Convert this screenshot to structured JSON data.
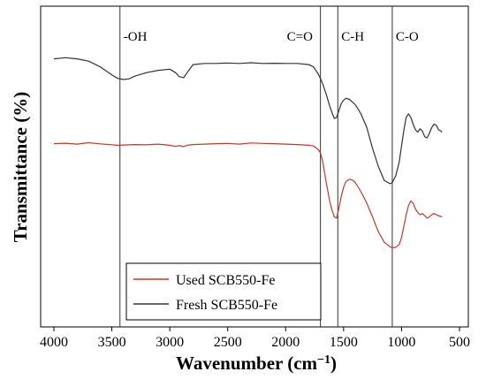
{
  "chart_data": {
    "type": "line",
    "title": "",
    "xlabel": "Wavenumber (cm",
    "xlabel_sup": "−1",
    "xlabel_close": ")",
    "ylabel": "Transmittance (%)",
    "xlim": [
      4000,
      500
    ],
    "x_reversed": true,
    "y_ticks_shown": false,
    "x_ticks": [
      "4000",
      "3500",
      "3000",
      "2500",
      "2000",
      "1500",
      "1000",
      "500"
    ],
    "x_tick_values": [
      4000,
      3500,
      3000,
      2500,
      2000,
      1500,
      1000,
      500
    ],
    "grid": false,
    "legend_position": "bottom-left",
    "annotations": [
      {
        "label": "-OH",
        "x": 3430
      },
      {
        "label": "C=O",
        "x": 1700
      },
      {
        "label": "C-H",
        "x": 1550
      },
      {
        "label": "C-O",
        "x": 1080
      }
    ],
    "series": [
      {
        "name": "Used SCB550-Fe",
        "color": "#c0392b",
        "x": [
          4000,
          3900,
          3800,
          3700,
          3600,
          3500,
          3450,
          3400,
          3300,
          3200,
          3100,
          3000,
          2950,
          2920,
          2880,
          2850,
          2800,
          2700,
          2600,
          2500,
          2400,
          2300,
          2200,
          2100,
          2000,
          1900,
          1800,
          1760,
          1740,
          1720,
          1700,
          1680,
          1650,
          1620,
          1600,
          1580,
          1560,
          1540,
          1520,
          1500,
          1480,
          1450,
          1420,
          1400,
          1380,
          1350,
          1300,
          1250,
          1200,
          1150,
          1100,
          1080,
          1050,
          1020,
          1000,
          980,
          960,
          940,
          920,
          900,
          880,
          860,
          840,
          820,
          800,
          780,
          760,
          740,
          720,
          700,
          680,
          660,
          650
        ],
        "y": [
          80.0,
          80.2,
          79.8,
          80.4,
          79.9,
          79.5,
          79.3,
          79.4,
          79.6,
          79.5,
          79.8,
          79.3,
          78.8,
          79.1,
          78.7,
          79.3,
          79.6,
          79.8,
          80.0,
          80.1,
          79.8,
          80.3,
          80.1,
          80.0,
          79.8,
          79.6,
          79.3,
          79.0,
          78.3,
          77.5,
          76.0,
          72.0,
          63.0,
          55.0,
          51.0,
          48.0,
          47.5,
          52.0,
          57.0,
          61.0,
          63.5,
          64.5,
          64.0,
          63.0,
          61.5,
          59.0,
          54.0,
          48.0,
          41.5,
          37.0,
          35.0,
          34.5,
          34.8,
          36.0,
          39.0,
          44.0,
          49.0,
          53.0,
          55.0,
          54.0,
          51.5,
          50.0,
          49.0,
          49.5,
          48.5,
          47.5,
          48.0,
          49.0,
          49.5,
          49.0,
          48.5,
          48.2,
          48.0
        ]
      },
      {
        "name": "Fresh SCB550-Fe",
        "color": "#333333",
        "x": [
          4000,
          3900,
          3800,
          3700,
          3600,
          3500,
          3450,
          3400,
          3350,
          3300,
          3200,
          3100,
          3000,
          2950,
          2920,
          2880,
          2850,
          2800,
          2700,
          2600,
          2500,
          2400,
          2300,
          2200,
          2100,
          2000,
          1900,
          1800,
          1760,
          1740,
          1720,
          1700,
          1680,
          1650,
          1620,
          1600,
          1580,
          1560,
          1540,
          1520,
          1500,
          1480,
          1450,
          1420,
          1400,
          1380,
          1350,
          1300,
          1250,
          1200,
          1150,
          1100,
          1080,
          1050,
          1020,
          1000,
          980,
          960,
          940,
          920,
          900,
          880,
          860,
          840,
          820,
          800,
          780,
          760,
          740,
          720,
          700,
          680,
          660,
          650
        ],
        "y": [
          117.0,
          117.5,
          117.0,
          116.0,
          113.5,
          110.0,
          108.5,
          108.0,
          108.3,
          109.5,
          111.0,
          112.0,
          112.5,
          111.0,
          109.3,
          108.8,
          111.0,
          114.5,
          115.0,
          115.0,
          115.2,
          115.0,
          115.3,
          115.0,
          115.1,
          115.0,
          115.0,
          114.5,
          113.5,
          112.0,
          110.5,
          108.5,
          106.0,
          101.5,
          96.5,
          93.5,
          91.0,
          91.5,
          94.5,
          97.5,
          99.0,
          99.8,
          99.3,
          98.0,
          97.0,
          95.5,
          93.0,
          87.0,
          78.0,
          70.0,
          64.0,
          62.5,
          63.0,
          66.0,
          72.0,
          79.0,
          86.0,
          91.5,
          93.0,
          91.5,
          88.5,
          86.0,
          85.0,
          86.5,
          85.5,
          83.0,
          82.5,
          84.5,
          87.0,
          88.5,
          88.0,
          86.0,
          85.5,
          85.0
        ]
      }
    ]
  }
}
